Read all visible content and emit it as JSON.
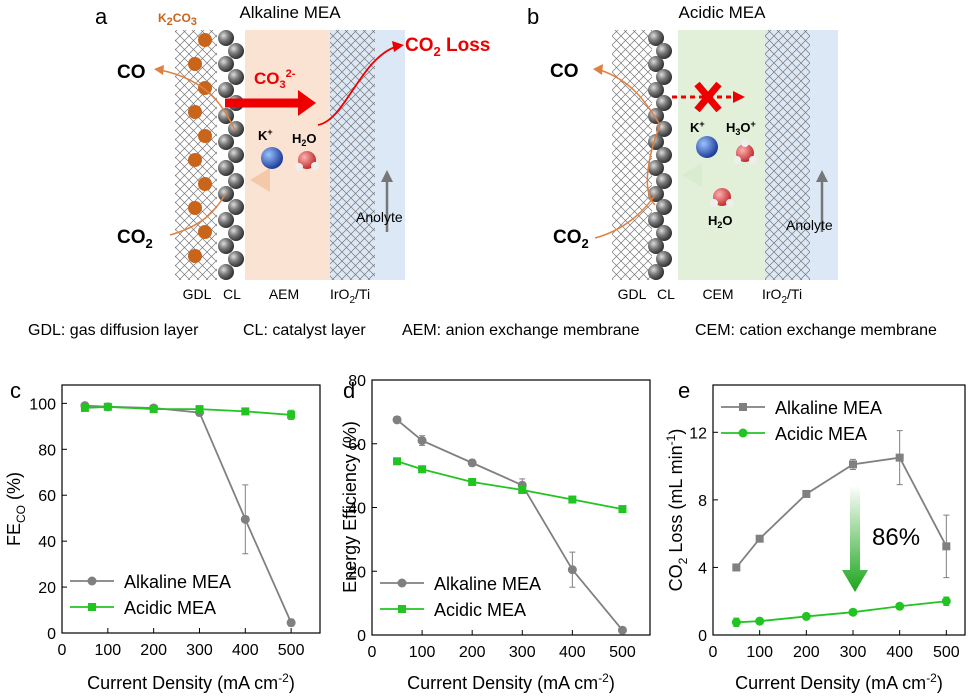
{
  "panel_a": {
    "letter": "a",
    "title": "Alkaline MEA",
    "salt": [
      "K",
      "2",
      "CO",
      "3"
    ],
    "product": "CO",
    "reactant": [
      "CO",
      "2"
    ],
    "ion": [
      "CO",
      "3",
      "2-"
    ],
    "loss": [
      "CO",
      "2",
      " Loss"
    ],
    "cation": [
      "K",
      "+"
    ],
    "water": [
      "H",
      "2",
      "O"
    ],
    "anolyte": "Anolyte",
    "layers": [
      "GDL",
      "CL",
      "AEM"
    ],
    "anode": [
      "IrO",
      "2",
      "/Ti"
    ]
  },
  "panel_b": {
    "letter": "b",
    "title": "Acidic MEA",
    "product": "CO",
    "reactant": [
      "CO",
      "2"
    ],
    "cation": [
      "K",
      "+"
    ],
    "hydronium": [
      "H",
      "3",
      "O",
      "+"
    ],
    "water": [
      "H",
      "2",
      "O"
    ],
    "anolyte": "Anolyte",
    "layers": [
      "GDL",
      "CL",
      "CEM"
    ],
    "anode": [
      "IrO",
      "2",
      "/Ti"
    ]
  },
  "key": [
    "GDL: gas diffusion layer",
    "CL: catalyst layer",
    "AEM: anion exchange membrane",
    "CEM: cation exchange membrane"
  ],
  "chart_data": [
    {
      "type": "line",
      "letter": "c",
      "ylabel": [
        "FE",
        "CO",
        "  (%)"
      ],
      "xlabel": [
        "Current Density (mA cm",
        "-2",
        ")"
      ],
      "x": [
        50,
        100,
        200,
        300,
        400,
        500
      ],
      "xlim": [
        0,
        563
      ],
      "ylim": [
        0,
        108
      ],
      "xticks": [
        0,
        100,
        200,
        300,
        400,
        500
      ],
      "yticks": [
        0,
        20,
        40,
        60,
        80,
        100
      ],
      "legend": "lower left",
      "series": [
        {
          "name": "Alkaline MEA",
          "color": "#808080",
          "marker": "circle",
          "values": [
            99,
            98.5,
            98,
            96,
            49.5,
            4.5
          ],
          "errors": [
            1,
            1,
            1,
            1,
            15,
            1.5
          ]
        },
        {
          "name": "Acidic MEA",
          "color": "#22c422",
          "marker": "square",
          "values": [
            98,
            98.5,
            97.5,
            97.5,
            96.5,
            95
          ],
          "errors": [
            1,
            1,
            1,
            1,
            1,
            2
          ]
        }
      ]
    },
    {
      "type": "line",
      "letter": "d",
      "ylabel": [
        "Energy Efficiency (%)"
      ],
      "xlabel": [
        "Current Density (mA cm",
        "-2",
        ")"
      ],
      "x": [
        50,
        100,
        200,
        300,
        400,
        500
      ],
      "xlim": [
        0,
        555
      ],
      "ylim": [
        0,
        80
      ],
      "xticks": [
        0,
        100,
        200,
        300,
        400,
        500
      ],
      "yticks": [
        0,
        20,
        40,
        60,
        80
      ],
      "legend": "lower left",
      "series": [
        {
          "name": "Alkaline MEA",
          "color": "#808080",
          "marker": "circle",
          "values": [
            67.5,
            61,
            54,
            47,
            20.5,
            1.5
          ],
          "errors": [
            1,
            1.5,
            1,
            2,
            5.5,
            0.5
          ]
        },
        {
          "name": "Acidic MEA",
          "color": "#22c422",
          "marker": "square",
          "values": [
            54.5,
            52,
            48,
            45.5,
            42.5,
            39.5
          ],
          "errors": [
            0.5,
            0.5,
            0.5,
            0.5,
            0.5,
            1
          ]
        }
      ]
    },
    {
      "type": "line",
      "letter": "e",
      "ylabel": [
        "CO",
        "2",
        " Loss (mL min",
        "-1",
        ")"
      ],
      "xlabel": [
        "Current Density (mA cm",
        "-2",
        ")"
      ],
      "x": [
        50,
        100,
        200,
        300,
        400,
        500
      ],
      "xlim": [
        0,
        540
      ],
      "ylim": [
        0,
        14.8
      ],
      "xticks": [
        0,
        100,
        200,
        300,
        400,
        500
      ],
      "yticks": [
        0,
        4,
        8,
        12
      ],
      "legend": "upper left",
      "annotation": "86%",
      "series": [
        {
          "name": "Alkaline MEA",
          "color": "#808080",
          "marker": "square",
          "values": [
            4,
            5.7,
            8.35,
            10.1,
            10.5,
            5.25
          ],
          "errors": [
            0.2,
            0.1,
            0.1,
            0.3,
            1.6,
            1.85
          ]
        },
        {
          "name": "Acidic MEA",
          "color": "#22c422",
          "marker": "circle",
          "values": [
            0.75,
            0.82,
            1.1,
            1.35,
            1.7,
            2
          ],
          "errors": [
            0.25,
            0.1,
            0.1,
            0.1,
            0.1,
            0.25
          ]
        }
      ]
    }
  ]
}
